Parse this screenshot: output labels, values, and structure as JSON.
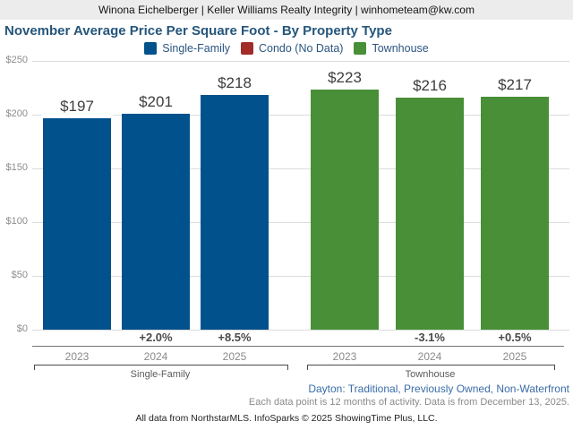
{
  "header": {
    "text": "Winona Eichelberger | Keller Williams Realty Integrity | winhometeam@kw.com"
  },
  "title": "November Average Price Per Square Foot - By Property Type",
  "legend": [
    {
      "label": "Single-Family",
      "color": "#01518C"
    },
    {
      "label": "Condo (No Data)",
      "color": "#A12C28"
    },
    {
      "label": "Townhouse",
      "color": "#488F38"
    }
  ],
  "chart_data": {
    "type": "bar",
    "title": "November Average Price Per Square Foot - By Property Type",
    "xlabel": "",
    "ylabel": "",
    "ylim": [
      0,
      250
    ],
    "yticks": [
      "$0",
      "$50",
      "$100",
      "$150",
      "$200",
      "$250"
    ],
    "ytick_values": [
      0,
      50,
      100,
      150,
      200,
      250
    ],
    "grid": true,
    "legend_position": "top",
    "groups": [
      {
        "name": "Single-Family",
        "color": "#01518C",
        "categories": [
          "2023",
          "2024",
          "2025"
        ],
        "values": [
          197,
          201,
          218
        ],
        "value_labels": [
          "$197",
          "$201",
          "$218"
        ],
        "pct_change": [
          "",
          "+2.0%",
          "+8.5%"
        ]
      },
      {
        "name": "Townhouse",
        "color": "#488F38",
        "categories": [
          "2023",
          "2024",
          "2025"
        ],
        "values": [
          223,
          216,
          217
        ],
        "value_labels": [
          "$223",
          "$216",
          "$217"
        ],
        "pct_change": [
          "",
          "-3.1%",
          "+0.5%"
        ]
      }
    ]
  },
  "footer": {
    "filters": "Dayton: Traditional, Previously Owned, Non-Waterfront",
    "data_note": "Each data point is 12 months of activity. Data is from December 13, 2025.",
    "attribution": "All data from NorthstarMLS. InfoSparks © 2025 ShowingTime Plus, LLC."
  }
}
